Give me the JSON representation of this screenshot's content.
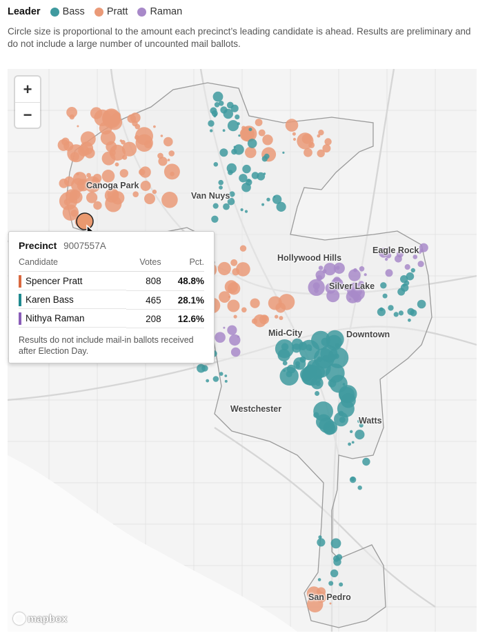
{
  "legend": {
    "title": "Leader",
    "items": [
      {
        "label": "Bass",
        "color": "#3f9a9f"
      },
      {
        "label": "Pratt",
        "color": "#ea9a78"
      },
      {
        "label": "Raman",
        "color": "#a889c9"
      }
    ]
  },
  "note": "Circle size is proportional to the amount each precinct’s leading candidate is ahead. Results are preliminary and do not include a large number of uncounted mail ballots.",
  "zoom": {
    "in": "+",
    "out": "−"
  },
  "places": [
    {
      "label": "Canoga Park"
    },
    {
      "label": "Van Nuys"
    },
    {
      "label": "Hollywood Hills"
    },
    {
      "label": "Eagle Rock"
    },
    {
      "label": "Silver Lake"
    },
    {
      "label": "Mid-City"
    },
    {
      "label": "Downtown"
    },
    {
      "label": "Westchester"
    },
    {
      "label": "Watts"
    },
    {
      "label": "San Pedro"
    }
  ],
  "attribution": "mapbox",
  "tooltip": {
    "title": "Precinct",
    "precinct_id": "9007557A",
    "headers": {
      "candidate": "Candidate",
      "votes": "Votes",
      "pct": "Pct."
    },
    "rows": [
      {
        "candidate": "Spencer Pratt",
        "votes": "808",
        "pct": "48.8%",
        "color": "#d9683f"
      },
      {
        "candidate": "Karen Bass",
        "votes": "465",
        "pct": "28.1%",
        "color": "#1f8a8f"
      },
      {
        "candidate": "Nithya Raman",
        "votes": "208",
        "pct": "12.6%",
        "color": "#8a5db8"
      }
    ],
    "footnote": "Results do not include mail-in ballots received after Election Day."
  }
}
